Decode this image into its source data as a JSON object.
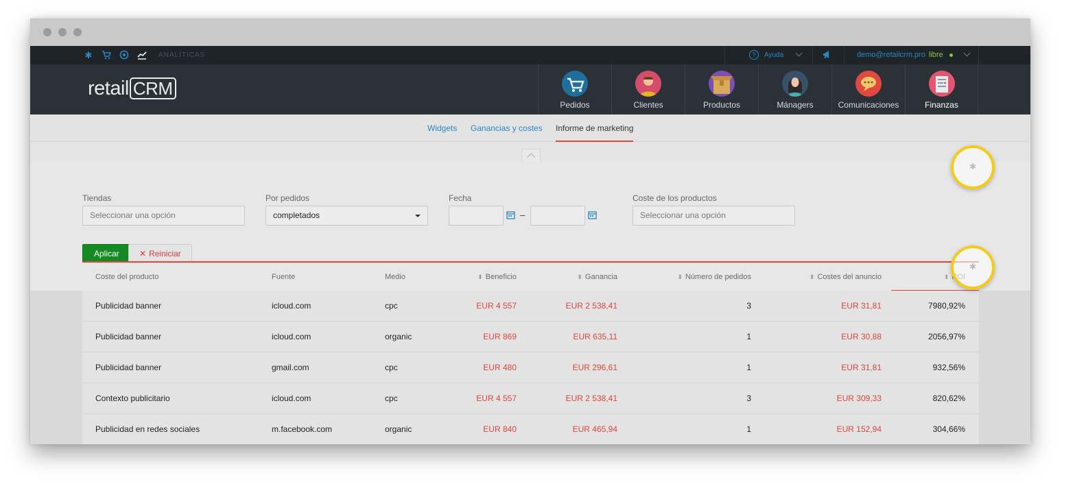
{
  "topbar": {
    "section_label": "ANALÍTICAS",
    "help_label": "Ayuda",
    "user_email": "demo@retailcrm.pro",
    "plan": "libre"
  },
  "brand": {
    "logo_prefix": "retail",
    "logo_boxed": "CRM"
  },
  "nav": {
    "items": [
      {
        "label": "Pedidos"
      },
      {
        "label": "Clientes"
      },
      {
        "label": "Productos"
      },
      {
        "label": "Mánagers"
      },
      {
        "label": "Comunicaciones"
      },
      {
        "label": "Finanzas"
      }
    ]
  },
  "subnav": {
    "tabs": [
      {
        "label": "Widgets"
      },
      {
        "label": "Ganancias y costes"
      },
      {
        "label": "Informe de marketing"
      }
    ]
  },
  "filters": {
    "stores": {
      "label": "Tiendas",
      "placeholder": "Seleccionar una opción"
    },
    "orders": {
      "label": "Por pedidos",
      "value": "completados"
    },
    "date": {
      "label": "Fecha",
      "separator": "–"
    },
    "product_cost": {
      "label": "Coste de los productos",
      "placeholder": "Seleccionar una opción"
    },
    "apply_label": "Aplicar",
    "reset_label": "Reiniciar"
  },
  "table": {
    "headers": [
      "Coste del producto",
      "Fuente",
      "Medio",
      "Beneficio",
      "Ganancia",
      "Número de pedidos",
      "Costes del anuncio",
      "ROI"
    ],
    "rows": [
      [
        "Publicidad banner",
        "icloud.com",
        "cpc",
        "EUR 4 557",
        "EUR 2 538,41",
        "3",
        "EUR 31,81",
        "7980,92%"
      ],
      [
        "Publicidad banner",
        "icloud.com",
        "organic",
        "EUR 869",
        "EUR 635,11",
        "1",
        "EUR 30,88",
        "2056,97%"
      ],
      [
        "Publicidad banner",
        "gmail.com",
        "cpc",
        "EUR 480",
        "EUR 296,61",
        "1",
        "EUR 31,81",
        "932,56%"
      ],
      [
        "Contexto publicitario",
        "icloud.com",
        "cpc",
        "EUR 4 557",
        "EUR 2 538,41",
        "3",
        "EUR 309,33",
        "820,62%"
      ],
      [
        "Publicidad en redes sociales",
        "m.facebook.com",
        "organic",
        "EUR 840",
        "EUR 465,94",
        "1",
        "EUR 152,94",
        "304,66%"
      ]
    ]
  },
  "colors": {
    "accent": "#2a87bf",
    "apply": "#148a22",
    "negative": "#d9453c",
    "hotspot": "#f6cb16",
    "header": "#2b3137"
  }
}
